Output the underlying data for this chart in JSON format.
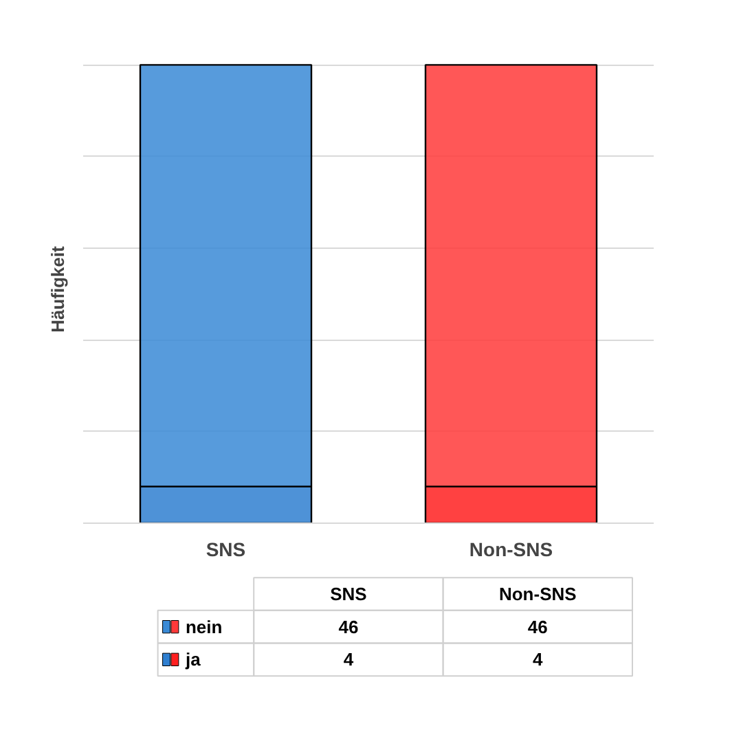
{
  "chart_data": {
    "type": "bar",
    "ylabel": "Häufigkeit",
    "categories": [
      "SNS",
      "Non-SNS"
    ],
    "stacked": true,
    "series": [
      {
        "name": "ja",
        "colors": [
          "#2f7fd0",
          "#ff2020"
        ],
        "values": [
          4,
          4
        ]
      },
      {
        "name": "nein",
        "colors": [
          "#3a8ad6",
          "#ff3a3a"
        ],
        "values": [
          46,
          46
        ]
      }
    ],
    "grid": "y",
    "legend": "bottom",
    "data_labels": true,
    "tick_labels": "x"
  }
}
